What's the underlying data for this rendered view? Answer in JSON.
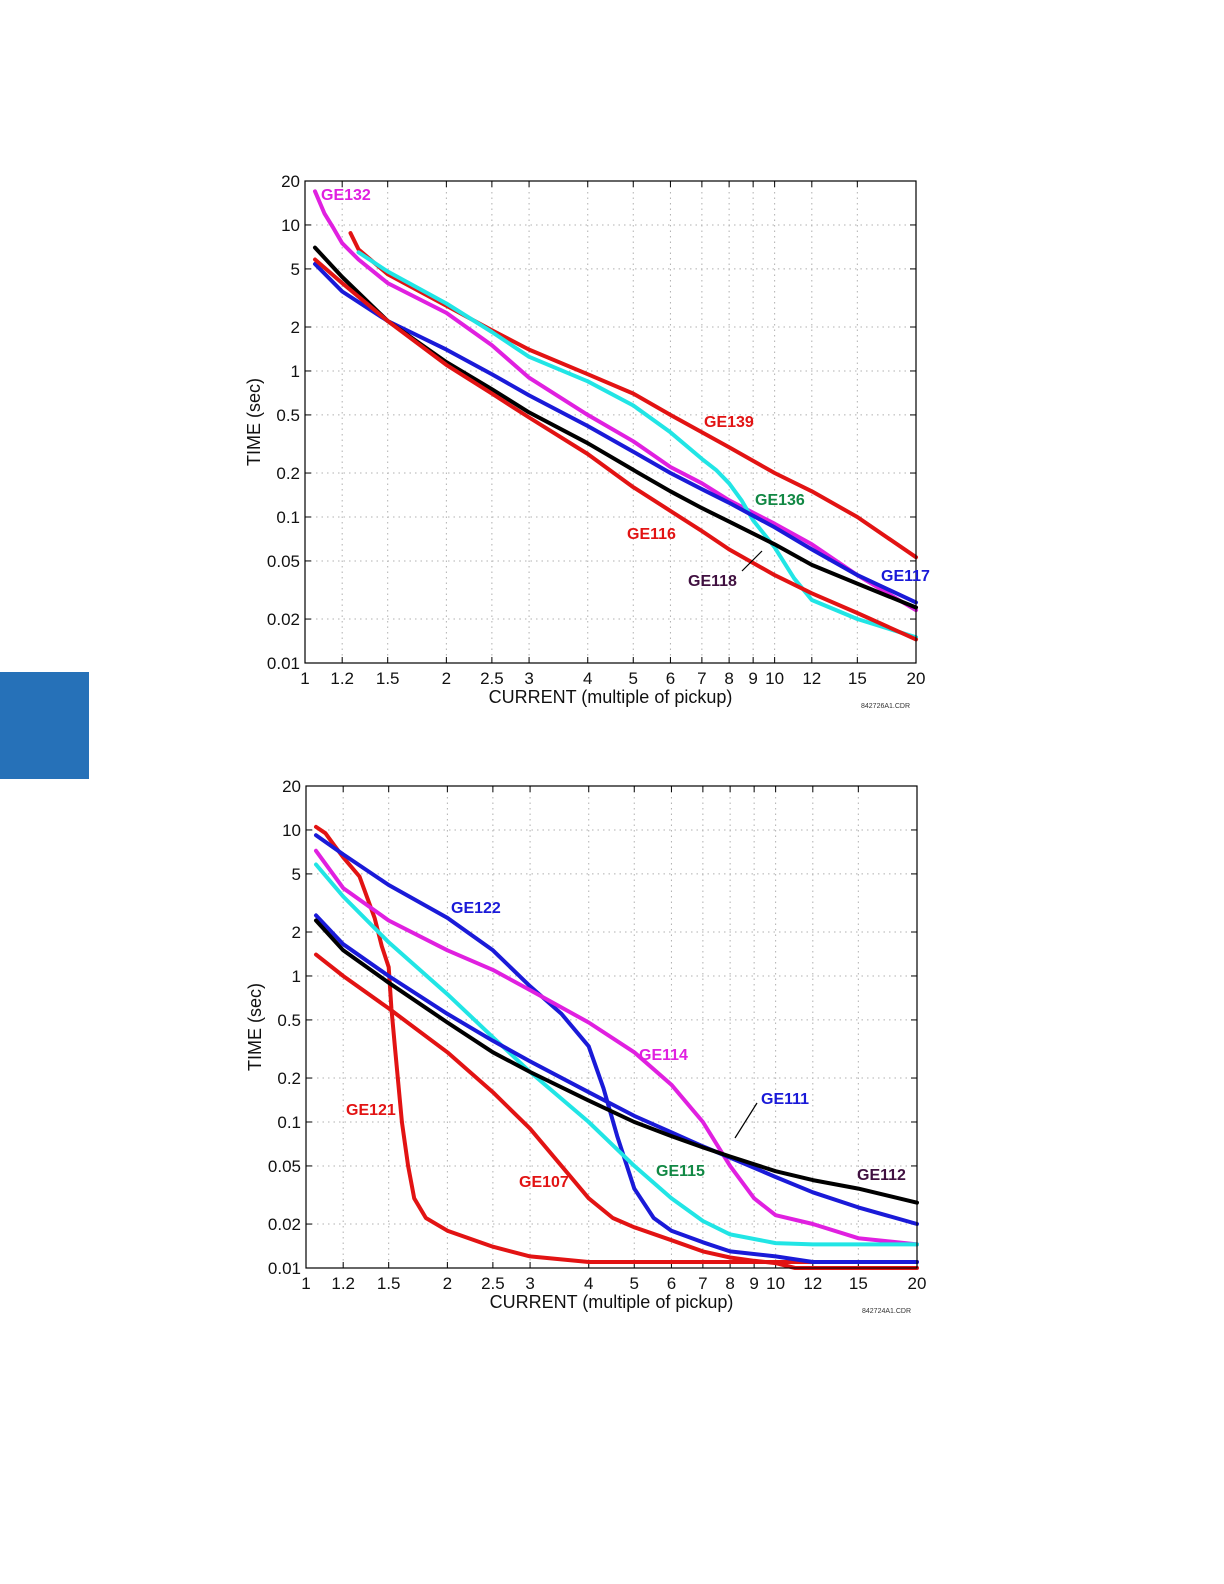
{
  "page": {
    "accent_color": "#2671b8"
  },
  "chart_data": [
    {
      "type": "line",
      "xscale": "log",
      "yscale": "log",
      "xlabel": "CURRENT (multiple of pickup)",
      "ylabel": "TIME (sec)",
      "xlim": [
        1,
        20
      ],
      "ylim": [
        0.01,
        20
      ],
      "xticks": [
        1,
        1.2,
        1.5,
        2,
        2.5,
        3,
        4,
        5,
        6,
        7,
        8,
        9,
        10,
        12,
        15,
        20
      ],
      "xtick_labels": [
        "1",
        "1.2",
        "1.5",
        "2",
        "2.5",
        "3",
        "4",
        "5",
        "6",
        "7",
        "8",
        "9",
        "10",
        "12",
        "15",
        "20"
      ],
      "yticks": [
        0.01,
        0.02,
        0.05,
        0.1,
        0.2,
        0.5,
        1,
        2,
        5,
        10,
        20
      ],
      "ytick_labels": [
        "0.01",
        "0.02",
        "0.05",
        "0.1",
        "0.2",
        "0.5",
        "1",
        "2",
        "5",
        "10",
        "20"
      ],
      "grid": true,
      "code": "842726A1.CDR",
      "series": [
        {
          "name": "GE132",
          "color": "#e020e0",
          "label_color": "#e020e0",
          "x": [
            1.05,
            1.1,
            1.15,
            1.2,
            1.3,
            1.5,
            2,
            2.5,
            3,
            4,
            5,
            6,
            7,
            8,
            10,
            12,
            15,
            20
          ],
          "y": [
            17,
            12,
            9.5,
            7.5,
            5.8,
            4.0,
            2.5,
            1.5,
            0.9,
            0.5,
            0.33,
            0.22,
            0.17,
            0.13,
            0.09,
            0.065,
            0.04,
            0.023
          ]
        },
        {
          "name": "GE139",
          "color": "#e21313",
          "label_color": "#e21313",
          "x": [
            1.25,
            1.3,
            1.5,
            2,
            2.5,
            3,
            4,
            5,
            6,
            7,
            8,
            10,
            12,
            15,
            20
          ],
          "y": [
            8.8,
            6.8,
            4.6,
            2.8,
            1.9,
            1.4,
            0.95,
            0.7,
            0.5,
            0.38,
            0.3,
            0.2,
            0.15,
            0.1,
            0.053
          ]
        },
        {
          "name": "GE136",
          "color": "#21e5e5",
          "label_color": "#118844",
          "x": [
            1.3,
            1.5,
            2,
            2.5,
            3,
            4,
            5,
            6,
            7,
            7.5,
            8,
            8.5,
            9,
            10,
            11,
            12,
            15,
            20
          ],
          "y": [
            6.5,
            4.8,
            2.9,
            1.85,
            1.25,
            0.85,
            0.58,
            0.38,
            0.25,
            0.21,
            0.17,
            0.13,
            0.095,
            0.062,
            0.038,
            0.027,
            0.02,
            0.015
          ]
        },
        {
          "name": "GE117",
          "color": "#1a1ad8",
          "label_color": "#1a1ad8",
          "x": [
            1.05,
            1.2,
            1.5,
            2,
            2.5,
            3,
            4,
            5,
            6,
            7,
            8,
            10,
            12,
            15,
            20
          ],
          "y": [
            5.4,
            3.5,
            2.2,
            1.4,
            0.95,
            0.68,
            0.42,
            0.28,
            0.2,
            0.155,
            0.125,
            0.085,
            0.06,
            0.04,
            0.026
          ]
        },
        {
          "name": "GE118",
          "color": "#000000",
          "label_color": "#401040",
          "x": [
            1.05,
            1.2,
            1.5,
            2,
            2.5,
            3,
            4,
            5,
            6,
            7,
            8,
            10,
            12,
            15,
            20
          ],
          "y": [
            7.0,
            4.4,
            2.2,
            1.15,
            0.75,
            0.52,
            0.32,
            0.21,
            0.15,
            0.115,
            0.093,
            0.065,
            0.047,
            0.035,
            0.024
          ]
        },
        {
          "name": "GE116",
          "color": "#e21313",
          "label_color": "#e21313",
          "x": [
            1.05,
            1.2,
            1.5,
            2,
            2.5,
            3,
            4,
            5,
            6,
            7,
            8,
            10,
            12,
            15,
            20
          ],
          "y": [
            5.8,
            4.0,
            2.2,
            1.1,
            0.7,
            0.48,
            0.27,
            0.16,
            0.11,
            0.08,
            0.06,
            0.04,
            0.03,
            0.022,
            0.0145
          ]
        }
      ],
      "annotations": [
        "GE132",
        "GE139",
        "GE136",
        "GE116",
        "GE118",
        "GE117"
      ]
    },
    {
      "type": "line",
      "xscale": "log",
      "yscale": "log",
      "xlabel": "CURRENT (multiple of pickup)",
      "ylabel": "TIME (sec)",
      "xlim": [
        1,
        20
      ],
      "ylim": [
        0.01,
        20
      ],
      "xticks": [
        1,
        1.2,
        1.5,
        2,
        2.5,
        3,
        4,
        5,
        6,
        7,
        8,
        9,
        10,
        12,
        15,
        20
      ],
      "xtick_labels": [
        "1",
        "1.2",
        "1.5",
        "2",
        "2.5",
        "3",
        "4",
        "5",
        "6",
        "7",
        "8",
        "9",
        "10",
        "12",
        "15",
        "20"
      ],
      "yticks": [
        0.01,
        0.02,
        0.05,
        0.1,
        0.2,
        0.5,
        1,
        2,
        5,
        10,
        20
      ],
      "ytick_labels": [
        "0.01",
        "0.02",
        "0.05",
        "0.1",
        "0.2",
        "0.5",
        "1",
        "2",
        "5",
        "10",
        "20"
      ],
      "grid": true,
      "code": "842724A1.CDR",
      "series": [
        {
          "name": "GE121",
          "color": "#e21313",
          "label_color": "#e21313",
          "x": [
            1.05,
            1.1,
            1.15,
            1.2,
            1.3,
            1.4,
            1.45,
            1.5,
            1.52,
            1.55,
            1.6,
            1.65,
            1.7,
            1.8,
            2,
            2.5,
            3,
            4,
            5,
            10,
            20
          ],
          "y": [
            10.5,
            9.5,
            7.8,
            6.5,
            4.8,
            2.5,
            1.6,
            1.15,
            0.6,
            0.3,
            0.1,
            0.05,
            0.03,
            0.022,
            0.018,
            0.014,
            0.012,
            0.011,
            0.011,
            0.011,
            0.011
          ]
        },
        {
          "name": "GE122",
          "color": "#1a1ad8",
          "label_color": "#1a1ad8",
          "x": [
            1.05,
            1.2,
            1.5,
            2,
            2.5,
            3,
            3.5,
            4,
            4.3,
            4.6,
            5,
            5.5,
            6,
            7,
            8,
            10,
            12,
            15,
            20
          ],
          "y": [
            9.2,
            6.8,
            4.2,
            2.5,
            1.5,
            0.85,
            0.55,
            0.33,
            0.17,
            0.08,
            0.035,
            0.022,
            0.018,
            0.015,
            0.013,
            0.012,
            0.011,
            0.011,
            0.011
          ]
        },
        {
          "name": "GE114",
          "color": "#e020e0",
          "label_color": "#e020e0",
          "x": [
            1.05,
            1.2,
            1.5,
            2,
            2.5,
            3,
            4,
            5,
            6,
            7,
            8,
            9,
            10,
            12,
            15,
            20
          ],
          "y": [
            7.2,
            4.0,
            2.4,
            1.5,
            1.1,
            0.8,
            0.48,
            0.3,
            0.18,
            0.1,
            0.05,
            0.03,
            0.023,
            0.02,
            0.016,
            0.0145
          ]
        },
        {
          "name": "GE115",
          "color": "#21e5e5",
          "label_color": "#118844",
          "x": [
            1.05,
            1.2,
            1.5,
            2,
            2.5,
            3,
            4,
            5,
            6,
            7,
            8,
            10,
            12,
            15,
            20
          ],
          "y": [
            5.8,
            3.5,
            1.7,
            0.75,
            0.38,
            0.22,
            0.1,
            0.05,
            0.03,
            0.021,
            0.017,
            0.0148,
            0.0145,
            0.0145,
            0.0145
          ]
        },
        {
          "name": "GE111",
          "color": "#1a1ad8",
          "label_color": "#1a1ad8",
          "x": [
            1.05,
            1.2,
            1.5,
            2,
            2.5,
            3,
            4,
            5,
            6,
            7,
            8,
            10,
            12,
            15,
            20
          ],
          "y": [
            2.6,
            1.65,
            1.0,
            0.55,
            0.36,
            0.26,
            0.16,
            0.11,
            0.085,
            0.068,
            0.057,
            0.042,
            0.033,
            0.026,
            0.02
          ]
        },
        {
          "name": "GE112",
          "color": "#000000",
          "label_color": "#401040",
          "x": [
            1.05,
            1.2,
            1.5,
            2,
            2.5,
            3,
            4,
            5,
            6,
            7,
            8,
            10,
            12,
            15,
            20
          ],
          "y": [
            2.4,
            1.5,
            0.9,
            0.48,
            0.3,
            0.22,
            0.14,
            0.1,
            0.08,
            0.067,
            0.058,
            0.046,
            0.04,
            0.035,
            0.028
          ]
        },
        {
          "name": "GE107",
          "color": "#e21313",
          "label_color": "#e21313",
          "x": [
            1.05,
            1.2,
            1.5,
            2,
            2.5,
            3,
            3.5,
            4,
            4.5,
            5,
            6,
            7,
            8,
            9,
            10,
            11,
            20
          ],
          "y": [
            1.4,
            1.0,
            0.6,
            0.3,
            0.16,
            0.09,
            0.05,
            0.03,
            0.022,
            0.019,
            0.0155,
            0.013,
            0.0118,
            0.0112,
            0.0108,
            0.01,
            0.01
          ]
        }
      ],
      "annotations": [
        "GE122",
        "GE114",
        "GE111",
        "GE121",
        "GE115",
        "GE107",
        "GE112"
      ]
    }
  ]
}
